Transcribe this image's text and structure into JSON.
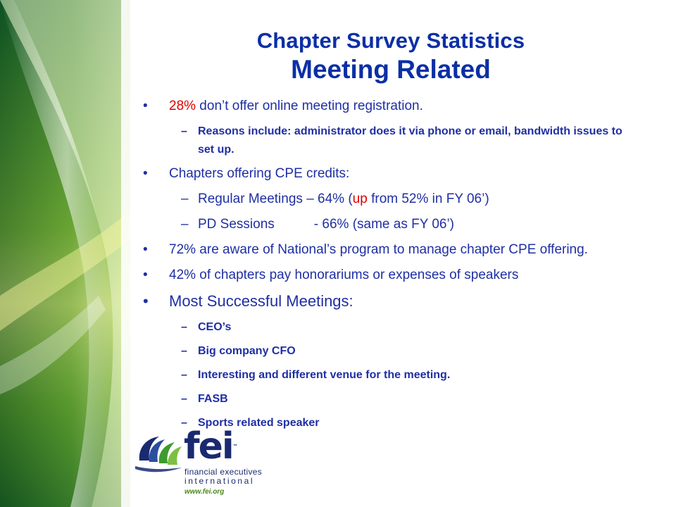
{
  "title": {
    "line1": "Chapter Survey Statistics",
    "line2": "Meeting Related"
  },
  "bullets": [
    {
      "highlight": "28%",
      "text": " don’t offer online meeting registration.",
      "sub": [
        "Reasons include: administrator does it via phone or email, bandwidth issues to set up."
      ]
    },
    {
      "text": "Chapters offering CPE credits:",
      "sub": [
        {
          "pre": "Regular Meetings – 64%  (",
          "highlight": "up",
          "post": " from 52% in FY 06’)"
        },
        {
          "pre": "PD Sessions",
          "post": "- 66% (same as FY 06’)"
        }
      ]
    },
    {
      "text": "72% are aware of National’s program to manage chapter CPE offering."
    },
    {
      "text": "42% of chapters pay honorariums or expenses of speakers"
    },
    {
      "text": "Most Successful Meetings:",
      "sub": [
        "CEO’s",
        "Big company CFO",
        "Interesting and different venue for the meeting.",
        "FASB",
        "Sports related speaker"
      ]
    }
  ],
  "logo": {
    "wordmark": "fei",
    "trademark": "™",
    "name_line1": "financial executives",
    "name_line2": "international",
    "url": "www.fei.org"
  },
  "symbols": {
    "bullet": "•",
    "dash": "–"
  },
  "colors": {
    "title": "#0b2fa6",
    "body": "#1f2fa4",
    "highlight": "#e00000",
    "logo_navy": "#1a2a70",
    "logo_green": "#4a8a1a"
  }
}
